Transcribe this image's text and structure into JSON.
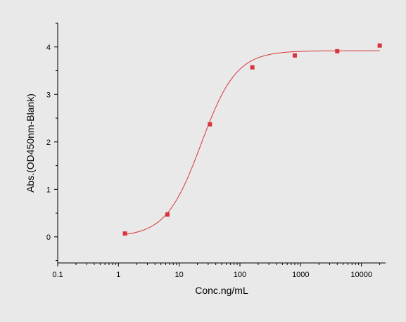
{
  "chart_data": {
    "type": "scatter",
    "title": "",
    "xlabel": "Conc.ng/mL",
    "ylabel": "Abs.(OD450nm-Blank)",
    "xscale": "log",
    "xlim": [
      0.1,
      25000
    ],
    "ylim": [
      -0.55,
      4.5
    ],
    "x_ticks": [
      0.1,
      1,
      10,
      100,
      1000,
      10000
    ],
    "x_tick_labels": [
      "0.1",
      "1",
      "10",
      "100",
      "1000",
      "10000"
    ],
    "y_ticks": [
      0,
      1,
      2,
      3,
      4
    ],
    "y_tick_labels": [
      "0",
      "1",
      "2",
      "3",
      "4"
    ],
    "grid": false,
    "legend": "none",
    "series": [
      {
        "points": [
          {
            "x": 1.28,
            "y": 0.07
          },
          {
            "x": 6.4,
            "y": 0.47
          },
          {
            "x": 32,
            "y": 2.37
          },
          {
            "x": 160,
            "y": 3.57
          },
          {
            "x": 800,
            "y": 3.82
          },
          {
            "x": 4000,
            "y": 3.91
          },
          {
            "x": 20000,
            "y": 4.03
          }
        ],
        "fit": {
          "model": "4PL",
          "bottom": 0.0,
          "top": 3.92,
          "ec50": 23,
          "hill": 1.5
        },
        "color": "#d8343c"
      }
    ],
    "colors": {
      "background": "#e9e9e9",
      "series": "#d8343c",
      "axis": "#000000"
    }
  }
}
